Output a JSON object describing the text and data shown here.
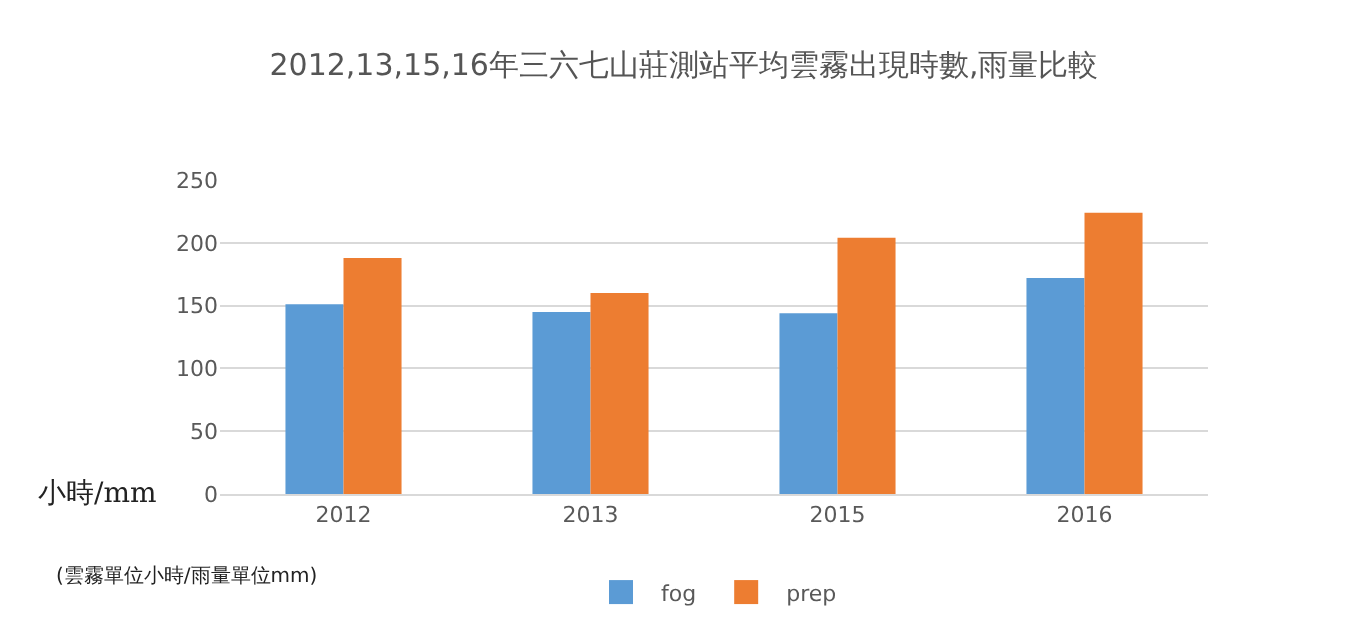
{
  "chart_data": {
    "type": "bar",
    "title": "2012,13,15,16年三六七山莊測站平均雲霧出現時數,雨量比較",
    "ylabel": "小時/mm",
    "annotations": [
      "(雲霧單位小時/雨量單位mm)"
    ],
    "categories": [
      "2012",
      "2013",
      "2015",
      "2016"
    ],
    "series": [
      {
        "name": "fog",
        "color": "#5b9bd5",
        "values": [
          151,
          145,
          144,
          172
        ]
      },
      {
        "name": "prep",
        "color": "#ed7d31",
        "values": [
          188,
          160,
          204,
          224
        ]
      }
    ],
    "ylim": [
      0,
      250
    ],
    "yticks": [
      0,
      50,
      100,
      150,
      200,
      250
    ],
    "grid": "y",
    "legend": "bottom"
  }
}
